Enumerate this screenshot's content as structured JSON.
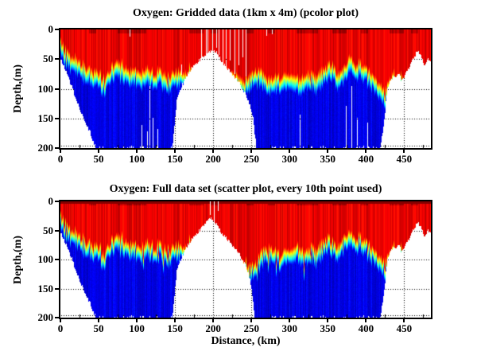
{
  "figure": {
    "background": "#ffffff",
    "text_color": "#000000",
    "colormap": "jet",
    "colormap_stops": [
      "#00007f",
      "#0000ff",
      "#00ffff",
      "#00ff00",
      "#ffff00",
      "#ff0000",
      "#7f0000"
    ],
    "no_data_color": "#ffffff",
    "grid_style": "dotted"
  },
  "chart_data": [
    {
      "type": "pcolor",
      "title": "Oxygen: Gridded data (1km x 4m) (pcolor plot)",
      "ylabel": "Depth,(m)",
      "xlabel": "",
      "xlim": [
        0,
        485
      ],
      "ylim": [
        0,
        200
      ],
      "y_axis_reversed": true,
      "xticks": [
        0,
        50,
        100,
        150,
        200,
        250,
        300,
        350,
        400,
        450
      ],
      "yticks": [
        0,
        50,
        100,
        150,
        200
      ],
      "xminor_step": 25,
      "grid": "dotted",
      "band_halfwidth_m": 14,
      "dark_surface_line": false,
      "noise": {
        "t1": 6,
        "t2": 4,
        "spikes": false
      },
      "seafloor_profile_km_m": [
        [
          0,
          48
        ],
        [
          8,
          72
        ],
        [
          18,
          108
        ],
        [
          28,
          142
        ],
        [
          38,
          172
        ],
        [
          46,
          200
        ],
        [
          146,
          200
        ],
        [
          152,
          118
        ],
        [
          158,
          95
        ],
        [
          166,
          76
        ],
        [
          174,
          60
        ],
        [
          184,
          48
        ],
        [
          192,
          40
        ],
        [
          198,
          32
        ],
        [
          203,
          36
        ],
        [
          210,
          52
        ],
        [
          218,
          64
        ],
        [
          226,
          76
        ],
        [
          234,
          90
        ],
        [
          241,
          106
        ],
        [
          247,
          124
        ],
        [
          252,
          148
        ],
        [
          256,
          200
        ],
        [
          418,
          200
        ],
        [
          423,
          162
        ],
        [
          427,
          104
        ],
        [
          432,
          84
        ],
        [
          436,
          76
        ],
        [
          439,
          84
        ],
        [
          442,
          72
        ],
        [
          446,
          86
        ],
        [
          451,
          74
        ],
        [
          457,
          62
        ],
        [
          462,
          48
        ],
        [
          467,
          36
        ],
        [
          471,
          42
        ],
        [
          476,
          60
        ],
        [
          480,
          50
        ],
        [
          485,
          56
        ]
      ],
      "oxycline_depth_km_m": [
        [
          0,
          30
        ],
        [
          6,
          44
        ],
        [
          12,
          54
        ],
        [
          20,
          62
        ],
        [
          30,
          72
        ],
        [
          40,
          78
        ],
        [
          48,
          82
        ],
        [
          58,
          95
        ],
        [
          66,
          76
        ],
        [
          74,
          66
        ],
        [
          82,
          74
        ],
        [
          90,
          82
        ],
        [
          98,
          74
        ],
        [
          106,
          84
        ],
        [
          114,
          78
        ],
        [
          122,
          86
        ],
        [
          130,
          80
        ],
        [
          138,
          92
        ],
        [
          146,
          86
        ],
        [
          160,
          80
        ],
        [
          175,
          78
        ],
        [
          200,
          78
        ],
        [
          225,
          82
        ],
        [
          232,
          92
        ],
        [
          240,
          98
        ],
        [
          248,
          86
        ],
        [
          256,
          78
        ],
        [
          264,
          88
        ],
        [
          274,
          96
        ],
        [
          284,
          92
        ],
        [
          294,
          86
        ],
        [
          304,
          92
        ],
        [
          314,
          96
        ],
        [
          324,
          84
        ],
        [
          334,
          90
        ],
        [
          344,
          78
        ],
        [
          354,
          72
        ],
        [
          362,
          84
        ],
        [
          370,
          76
        ],
        [
          378,
          62
        ],
        [
          384,
          72
        ],
        [
          390,
          64
        ],
        [
          398,
          76
        ],
        [
          406,
          84
        ],
        [
          414,
          96
        ],
        [
          420,
          104
        ],
        [
          424,
          120
        ],
        [
          428,
          100
        ],
        [
          434,
          86
        ],
        [
          440,
          86
        ],
        [
          447,
          94
        ],
        [
          455,
          92
        ],
        [
          463,
          82
        ],
        [
          470,
          70
        ],
        [
          477,
          80
        ],
        [
          485,
          72
        ]
      ],
      "data_gap_lines_km_m": [
        [
          91,
          0,
          12
        ],
        [
          106,
          162,
          200
        ],
        [
          113,
          172,
          200
        ],
        [
          117,
          96,
          200
        ],
        [
          121,
          150,
          200
        ],
        [
          127,
          168,
          200
        ],
        [
          158,
          60,
          76
        ],
        [
          184,
          0,
          54
        ],
        [
          190,
          0,
          40
        ],
        [
          193,
          0,
          72
        ],
        [
          199,
          0,
          88
        ],
        [
          204,
          0,
          30
        ],
        [
          207,
          0,
          42
        ],
        [
          212,
          0,
          58
        ],
        [
          217,
          0,
          66
        ],
        [
          222,
          0,
          52
        ],
        [
          228,
          0,
          74
        ],
        [
          233,
          0,
          60
        ],
        [
          238,
          0,
          46
        ],
        [
          243,
          0,
          78
        ],
        [
          270,
          0,
          10
        ],
        [
          277,
          0,
          8
        ],
        [
          313,
          144,
          200
        ],
        [
          374,
          130,
          200
        ],
        [
          381,
          96,
          200
        ],
        [
          388,
          150,
          200
        ],
        [
          402,
          158,
          200
        ]
      ]
    },
    {
      "type": "scatter",
      "title": "Oxygen: Full data set (scatter plot, every 10th point used)",
      "ylabel": "Depth,(m)",
      "xlabel": "Distance, (km)",
      "xlim": [
        0,
        485
      ],
      "ylim": [
        0,
        200
      ],
      "y_axis_reversed": true,
      "xticks": [
        0,
        50,
        100,
        150,
        200,
        250,
        300,
        350,
        400,
        450
      ],
      "yticks": [
        0,
        50,
        100,
        150,
        200
      ],
      "xminor_step": 25,
      "grid": "dotted",
      "band_halfwidth_m": 13,
      "dark_surface_line": true,
      "noise": {
        "t1": 8,
        "t2": 5,
        "spikes": true
      },
      "seafloor_profile_km_m": [
        [
          0,
          52
        ],
        [
          8,
          76
        ],
        [
          18,
          110
        ],
        [
          28,
          144
        ],
        [
          38,
          174
        ],
        [
          46,
          200
        ],
        [
          146,
          200
        ],
        [
          152,
          118
        ],
        [
          158,
          95
        ],
        [
          166,
          76
        ],
        [
          174,
          60
        ],
        [
          184,
          46
        ],
        [
          190,
          36
        ],
        [
          196,
          26
        ],
        [
          202,
          34
        ],
        [
          210,
          52
        ],
        [
          218,
          64
        ],
        [
          226,
          76
        ],
        [
          234,
          90
        ],
        [
          241,
          106
        ],
        [
          246,
          124
        ],
        [
          250,
          150
        ],
        [
          254,
          200
        ],
        [
          418,
          200
        ],
        [
          423,
          162
        ],
        [
          427,
          104
        ],
        [
          432,
          84
        ],
        [
          436,
          76
        ],
        [
          439,
          84
        ],
        [
          442,
          72
        ],
        [
          446,
          86
        ],
        [
          451,
          74
        ],
        [
          457,
          62
        ],
        [
          462,
          48
        ],
        [
          467,
          36
        ],
        [
          471,
          42
        ],
        [
          476,
          60
        ],
        [
          480,
          50
        ],
        [
          485,
          56
        ]
      ],
      "oxycline_depth_km_m": [
        [
          0,
          34
        ],
        [
          6,
          46
        ],
        [
          12,
          56
        ],
        [
          20,
          66
        ],
        [
          30,
          76
        ],
        [
          40,
          82
        ],
        [
          48,
          86
        ],
        [
          58,
          98
        ],
        [
          66,
          80
        ],
        [
          74,
          70
        ],
        [
          82,
          78
        ],
        [
          90,
          86
        ],
        [
          98,
          78
        ],
        [
          106,
          88
        ],
        [
          114,
          82
        ],
        [
          122,
          90
        ],
        [
          130,
          84
        ],
        [
          138,
          96
        ],
        [
          146,
          90
        ],
        [
          160,
          84
        ],
        [
          175,
          80
        ],
        [
          200,
          80
        ],
        [
          215,
          84
        ],
        [
          226,
          95
        ],
        [
          236,
          112
        ],
        [
          244,
          120
        ],
        [
          252,
          118
        ],
        [
          258,
          112
        ],
        [
          264,
          100
        ],
        [
          270,
          88
        ],
        [
          278,
          96
        ],
        [
          286,
          102
        ],
        [
          294,
          92
        ],
        [
          302,
          98
        ],
        [
          310,
          90
        ],
        [
          318,
          98
        ],
        [
          326,
          88
        ],
        [
          334,
          94
        ],
        [
          342,
          82
        ],
        [
          350,
          76
        ],
        [
          358,
          88
        ],
        [
          366,
          80
        ],
        [
          374,
          66
        ],
        [
          382,
          76
        ],
        [
          390,
          68
        ],
        [
          398,
          80
        ],
        [
          406,
          88
        ],
        [
          414,
          98
        ],
        [
          420,
          106
        ],
        [
          424,
          122
        ],
        [
          428,
          102
        ],
        [
          434,
          88
        ],
        [
          440,
          88
        ],
        [
          447,
          96
        ],
        [
          455,
          94
        ],
        [
          463,
          84
        ],
        [
          470,
          72
        ],
        [
          477,
          82
        ],
        [
          485,
          74
        ]
      ],
      "data_gap_lines_km_m": [
        [
          196,
          0,
          22
        ],
        [
          201,
          0,
          34
        ],
        [
          206,
          0,
          16
        ]
      ]
    }
  ]
}
